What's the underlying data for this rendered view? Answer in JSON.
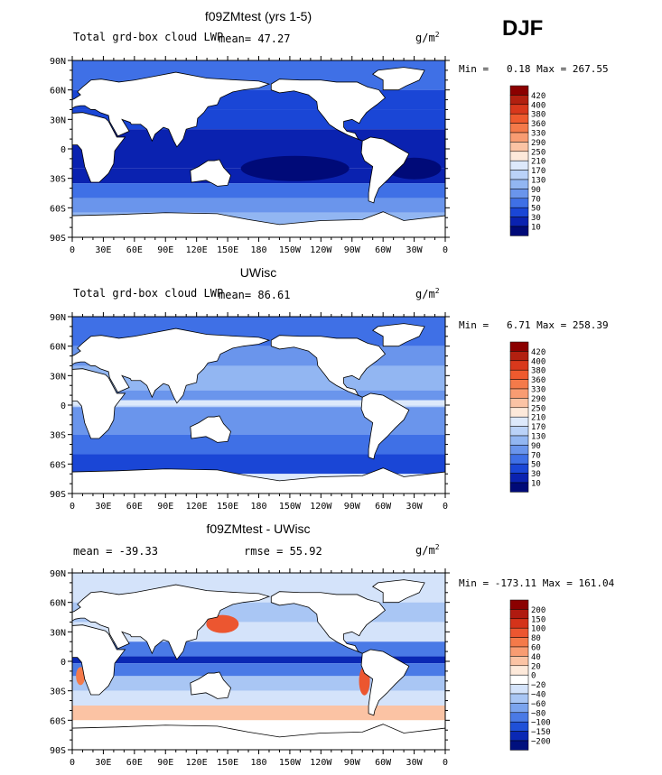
{
  "season": "DJF",
  "unit_label": "g/m",
  "unit_sup": "2",
  "panels": [
    {
      "title": "f09ZMtest (yrs 1-5)",
      "subtitle": "Total grd-box cloud LWP",
      "stat": "mean=  47.27",
      "minmax": "Min =   0.18 Max = 267.55",
      "levels": [
        "420",
        "400",
        "380",
        "360",
        "330",
        "290",
        "250",
        "210",
        "170",
        "130",
        "90",
        "70",
        "50",
        "30",
        "10"
      ],
      "colors": [
        "#8b0000",
        "#b22010",
        "#d8381c",
        "#ee5a2e",
        "#f47a4a",
        "#f89c72",
        "#fbc3a4",
        "#fde9da",
        "#dde9fb",
        "#bad2f8",
        "#92b6f2",
        "#6a95ec",
        "#3f70e6",
        "#1a46d6",
        "#0a22b0",
        "#000a78"
      ]
    },
    {
      "title": "UWisc",
      "subtitle": "Total grd-box cloud LWP",
      "stat": "mean=  86.61",
      "minmax": "Min =   6.71 Max = 258.39",
      "levels": [
        "420",
        "400",
        "380",
        "360",
        "330",
        "290",
        "250",
        "210",
        "170",
        "130",
        "90",
        "70",
        "50",
        "30",
        "10"
      ],
      "colors": [
        "#8b0000",
        "#b22010",
        "#d8381c",
        "#ee5a2e",
        "#f47a4a",
        "#f89c72",
        "#fbc3a4",
        "#fde9da",
        "#dde9fb",
        "#bad2f8",
        "#92b6f2",
        "#6a95ec",
        "#3f70e6",
        "#1a46d6",
        "#0a22b0",
        "#000a78"
      ]
    },
    {
      "title": "f09ZMtest - UWisc",
      "subtitle": "mean = -39.33",
      "stat": "rmse =  55.92",
      "minmax": "Min = -173.11 Max = 161.04",
      "levels": [
        "200",
        "150",
        "100",
        "80",
        "60",
        "40",
        "20",
        "0",
        "−20",
        "−40",
        "−60",
        "−80",
        "−100",
        "−150",
        "−200"
      ],
      "colors": [
        "#8b0000",
        "#b01a10",
        "#d4331a",
        "#ec5630",
        "#f47a4a",
        "#f89c72",
        "#fbc3a4",
        "#fde9da",
        "#ffffff",
        "#d4e3fa",
        "#a9c6f4",
        "#7ba4ee",
        "#4a7ae6",
        "#1f50d8",
        "#0a28b4",
        "#00107e"
      ]
    }
  ],
  "x_ticks": [
    "0",
    "30E",
    "60E",
    "90E",
    "120E",
    "150E",
    "180",
    "150W",
    "120W",
    "90W",
    "60W",
    "30W",
    "0"
  ],
  "y_ticks": [
    "90N",
    "60N",
    "30N",
    "0",
    "30S",
    "60S",
    "90S"
  ]
}
